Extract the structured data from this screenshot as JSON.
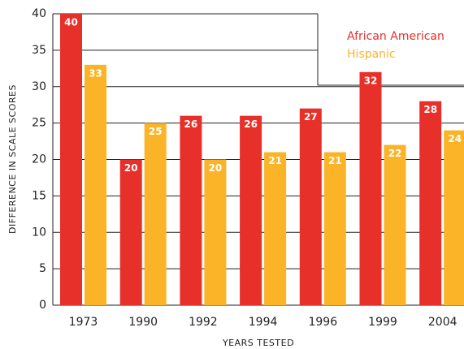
{
  "chart_data": {
    "type": "bar",
    "x_label": "YEARS TESTED",
    "y_label": "DIFFERENCE IN SCALE SCORES",
    "categories": [
      "1973",
      "1990",
      "1992",
      "1994",
      "1996",
      "1999",
      "2004"
    ],
    "series": [
      {
        "name": "African American",
        "color": "#e8302a",
        "values": [
          40,
          20,
          26,
          26,
          27,
          32,
          28
        ]
      },
      {
        "name": "Hispanic",
        "color": "#fbb428",
        "values": [
          33,
          25,
          20,
          21,
          21,
          22,
          24
        ]
      }
    ],
    "ylim": [
      0,
      40
    ],
    "yticks": [
      0,
      5,
      10,
      15,
      20,
      25,
      30,
      35,
      40
    ],
    "grid": true,
    "legend": "top-right"
  }
}
